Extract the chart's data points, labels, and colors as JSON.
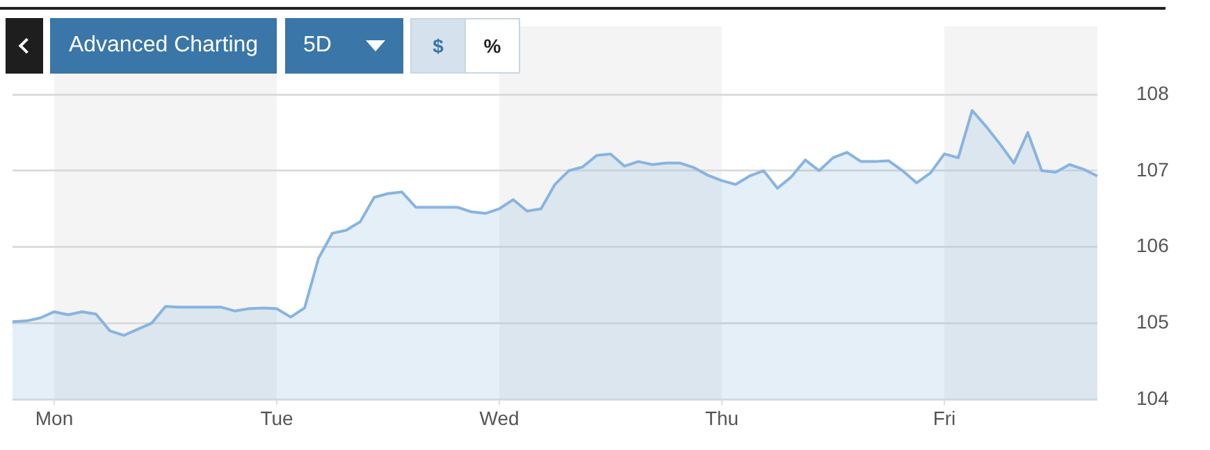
{
  "chart_data": {
    "type": "area",
    "annotations": [
      "Advanced Charting",
      "5D",
      "$",
      "%"
    ],
    "categories": [
      null,
      null,
      null,
      "Mon",
      null,
      null,
      null,
      null,
      null,
      null,
      null,
      null,
      null,
      null,
      null,
      null,
      null,
      null,
      null,
      "Tue",
      null,
      null,
      null,
      null,
      null,
      null,
      null,
      null,
      null,
      null,
      null,
      null,
      null,
      null,
      null,
      "Wed",
      null,
      null,
      null,
      null,
      null,
      null,
      null,
      null,
      null,
      null,
      null,
      null,
      null,
      null,
      null,
      "Thu",
      null,
      null,
      null,
      null,
      null,
      null,
      null,
      null,
      null,
      null,
      null,
      null,
      null,
      null,
      null,
      "Fri",
      null,
      null,
      null,
      null,
      null,
      null,
      null,
      null,
      null,
      null,
      null
    ],
    "series": [
      {
        "color": "#88b4e0",
        "values": [
          105.02,
          105.03,
          105.07,
          105.15,
          105.11,
          105.15,
          105.12,
          104.9,
          104.84,
          104.92,
          105.0,
          105.22,
          105.21,
          105.21,
          105.21,
          105.21,
          105.16,
          105.19,
          105.2,
          105.19,
          105.08,
          105.2,
          105.85,
          106.18,
          106.22,
          106.33,
          106.65,
          106.7,
          106.72,
          106.52,
          106.52,
          106.52,
          106.52,
          106.46,
          106.44,
          106.5,
          106.62,
          106.47,
          106.5,
          106.82,
          107.0,
          107.05,
          107.2,
          107.22,
          107.06,
          107.12,
          107.08,
          107.1,
          107.1,
          107.04,
          106.94,
          106.87,
          106.82,
          106.93,
          107.0,
          106.77,
          106.92,
          107.14,
          107.0,
          107.17,
          107.24,
          107.12,
          107.12,
          107.13,
          107.0,
          106.84,
          106.97,
          107.22,
          107.17,
          107.79,
          107.58,
          107.35,
          107.1,
          107.5,
          107.0,
          106.98,
          107.08,
          107.02,
          106.93
        ]
      }
    ],
    "ylim": [
      104,
      108
    ],
    "yticks": [
      104,
      105,
      106,
      107,
      108
    ],
    "grid": "y"
  }
}
